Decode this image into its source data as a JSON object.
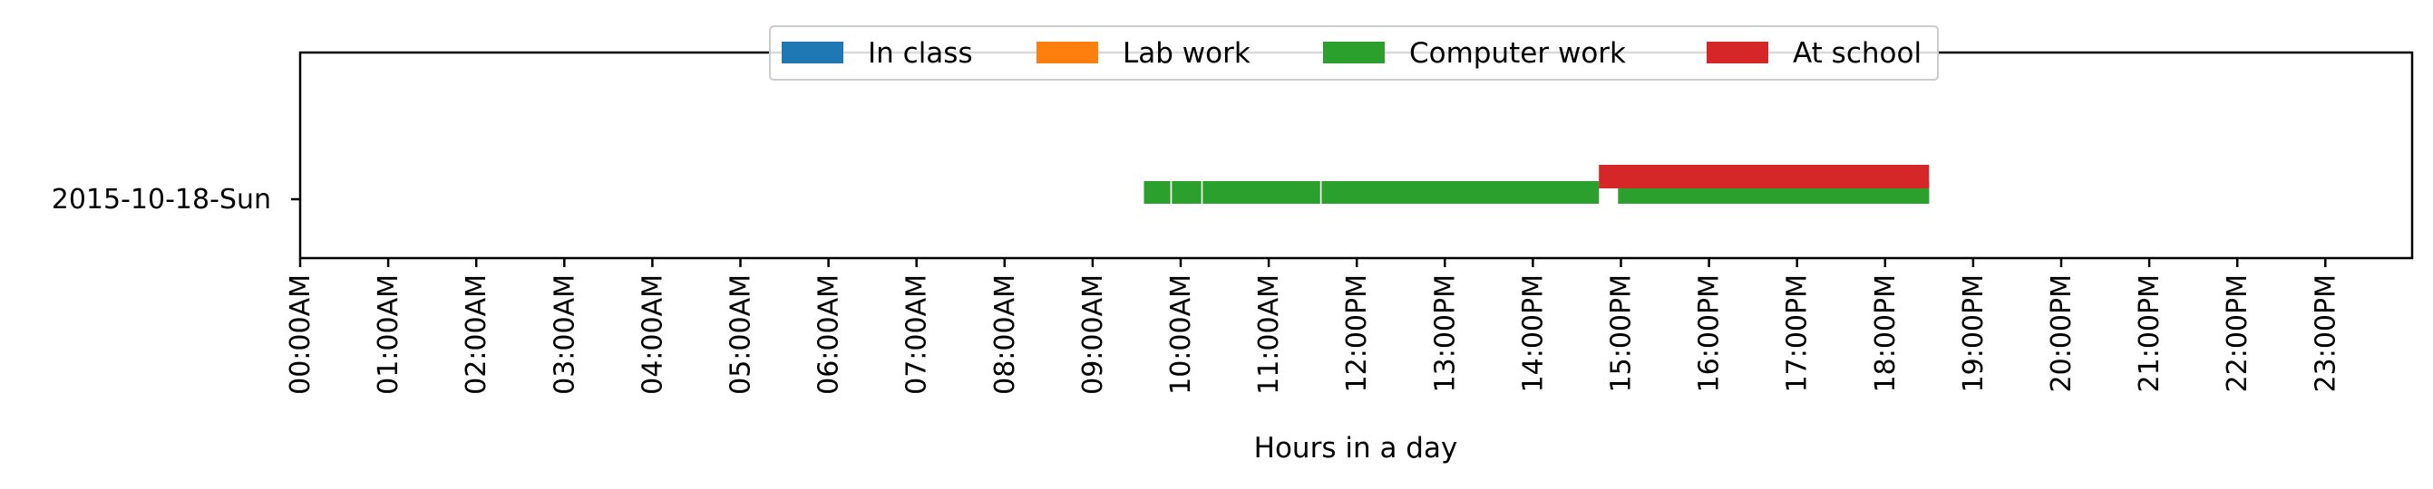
{
  "chart_data": {
    "type": "timeline",
    "xlabel": "Hours in a day",
    "x_ticks": [
      "00:00AM",
      "01:00AM",
      "02:00AM",
      "03:00AM",
      "04:00AM",
      "05:00AM",
      "06:00AM",
      "07:00AM",
      "08:00AM",
      "09:00AM",
      "10:00AM",
      "11:00AM",
      "12:00PM",
      "13:00PM",
      "14:00PM",
      "15:00PM",
      "16:00PM",
      "17:00PM",
      "18:00PM",
      "19:00PM",
      "20:00PM",
      "21:00PM",
      "22:00PM",
      "23:00PM"
    ],
    "xlim_hours": [
      0,
      24
    ],
    "rows": [
      "2015-10-18-Sun"
    ],
    "legend_position": "top-center",
    "series": [
      {
        "name": "In class",
        "color": "#1f77b4",
        "segments": []
      },
      {
        "name": "Lab work",
        "color": "#ff7f0e",
        "segments": []
      },
      {
        "name": "Computer work",
        "color": "#2ca02c",
        "segments": [
          {
            "row": 0,
            "start": "09:35",
            "end": "09:53"
          },
          {
            "row": 0,
            "start": "09:54",
            "end": "10:14"
          },
          {
            "row": 0,
            "start": "10:15",
            "end": "11:35"
          },
          {
            "row": 0,
            "start": "11:36",
            "end": "14:45"
          },
          {
            "row": 0,
            "start": "14:58",
            "end": "18:30"
          }
        ]
      },
      {
        "name": "At school",
        "color": "#d62728",
        "segments": [
          {
            "row": 0,
            "start": "14:45",
            "end": "18:30"
          }
        ]
      }
    ]
  }
}
